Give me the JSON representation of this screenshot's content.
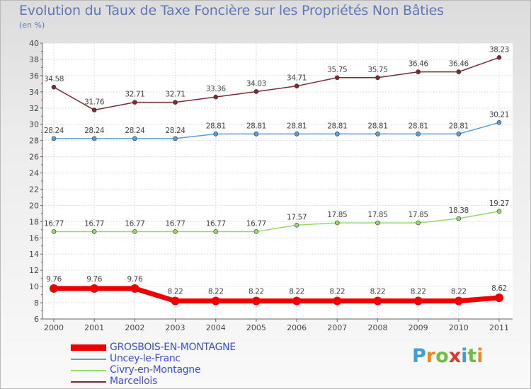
{
  "chart_data": {
    "type": "line",
    "title": "Evolution du Taux de Taxe Foncière sur les Propriétés Non Bâties",
    "subtitle": "(en %)",
    "xlabel": "",
    "ylabel": "(en %)",
    "ylim": [
      6,
      40
    ],
    "yticks": [
      "6",
      "8",
      "10",
      "12",
      "14",
      "16",
      "18",
      "20",
      "22",
      "24",
      "26",
      "28",
      "30",
      "32",
      "34",
      "36",
      "38",
      "40"
    ],
    "x": [
      "2000",
      "2001",
      "2002",
      "2003",
      "2004",
      "2005",
      "2006",
      "2007",
      "2008",
      "2009",
      "2010",
      "2011"
    ],
    "grid": true,
    "legend_position": "bottom-left",
    "series": [
      {
        "name": "GROSBOIS-EN-MONTAGNE",
        "color": "#ee0000",
        "values": [
          9.76,
          9.76,
          9.76,
          8.22,
          8.22,
          8.22,
          8.22,
          8.22,
          8.22,
          8.22,
          8.22,
          8.62
        ],
        "labels": [
          "9.76",
          "9.76",
          "9.76",
          "8.22",
          "8.22",
          "8.22",
          "8.22",
          "8.22",
          "8.22",
          "8.22",
          "8.22",
          "8.62"
        ]
      },
      {
        "name": "Uncey-le-Franc",
        "color": "#5a9fd4",
        "values": [
          28.24,
          28.24,
          28.24,
          28.24,
          28.81,
          28.81,
          28.81,
          28.81,
          28.81,
          28.81,
          28.81,
          30.21
        ],
        "labels": [
          "28.24",
          "28.24",
          "28.24",
          "28.24",
          "28.81",
          "28.81",
          "28.81",
          "28.81",
          "28.81",
          "28.81",
          "28.81",
          "30.21"
        ]
      },
      {
        "name": "Civry-en-Montagne",
        "color": "#96d86a",
        "values": [
          16.77,
          16.77,
          16.77,
          16.77,
          16.77,
          16.77,
          17.57,
          17.85,
          17.85,
          17.85,
          18.38,
          19.27
        ],
        "labels": [
          "16.77",
          "16.77",
          "16.77",
          "16.77",
          "16.77",
          "16.77",
          "17.57",
          "17.85",
          "17.85",
          "17.85",
          "18.38",
          "19.27"
        ]
      },
      {
        "name": "Marcellois",
        "color": "#7b2b33",
        "values": [
          34.58,
          31.76,
          32.71,
          32.71,
          33.36,
          34.03,
          34.71,
          35.75,
          35.75,
          36.46,
          36.46,
          38.23
        ],
        "labels": [
          "34.58",
          "31.76",
          "32.71",
          "32.71",
          "33.36",
          "34.03",
          "34.71",
          "35.75",
          "35.75",
          "36.46",
          "36.46",
          "38.23"
        ]
      }
    ]
  },
  "brand": {
    "letters": [
      "P",
      "r",
      "o",
      "x",
      "i",
      "t",
      "i"
    ],
    "colors": [
      "#3aa0d8",
      "#e88a24",
      "#6cbf3c",
      "#e2352b",
      "#3aa0d8",
      "#6cbf3c",
      "#e88a24"
    ]
  }
}
